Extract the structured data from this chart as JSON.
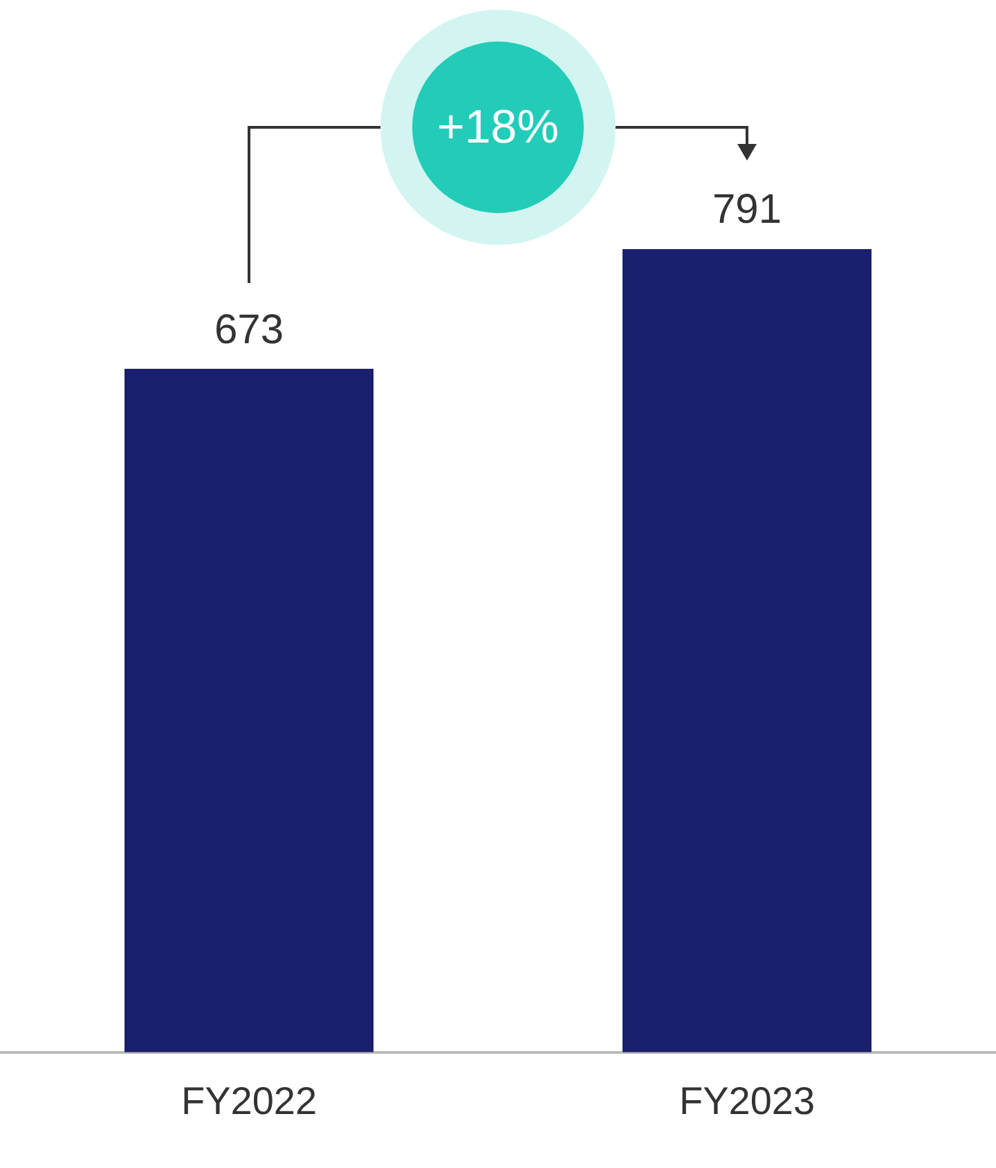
{
  "chart_data": {
    "type": "bar",
    "categories": [
      "FY2022",
      "FY2023"
    ],
    "values": [
      673,
      791
    ],
    "color": "#1a206e",
    "data_labels": true,
    "grid": false,
    "legend": false,
    "annotations": [
      "+18%"
    ]
  }
}
